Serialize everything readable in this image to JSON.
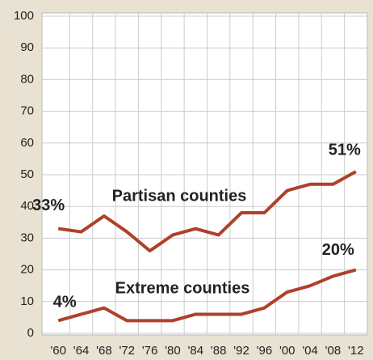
{
  "chart_data": {
    "type": "line",
    "categories": [
      "'60",
      "'64",
      "'68",
      "'72",
      "'76",
      "'80",
      "'84",
      "'88",
      "'92",
      "'96",
      "'00",
      "'04",
      "'08",
      "'12"
    ],
    "series": [
      {
        "name": "Partisan counties",
        "color": "#b0402b",
        "values": [
          33,
          32,
          37,
          32,
          26,
          31,
          33,
          31,
          38,
          38,
          45,
          47,
          47,
          51
        ],
        "value_labels": [
          "33%",
          null,
          null,
          null,
          null,
          null,
          null,
          null,
          null,
          null,
          null,
          null,
          null,
          "51%"
        ]
      },
      {
        "name": "Extreme counties",
        "color": "#b0402b",
        "values": [
          4,
          6,
          8,
          4,
          4,
          4,
          6,
          6,
          6,
          8,
          13,
          15,
          18,
          20
        ],
        "value_labels": [
          "4%",
          null,
          null,
          null,
          null,
          null,
          null,
          null,
          null,
          null,
          null,
          null,
          null,
          "20%"
        ]
      }
    ],
    "ylim": [
      0,
      100
    ],
    "yticks": [
      0,
      10,
      20,
      30,
      40,
      50,
      60,
      70,
      80,
      90,
      100
    ],
    "grid": true
  }
}
